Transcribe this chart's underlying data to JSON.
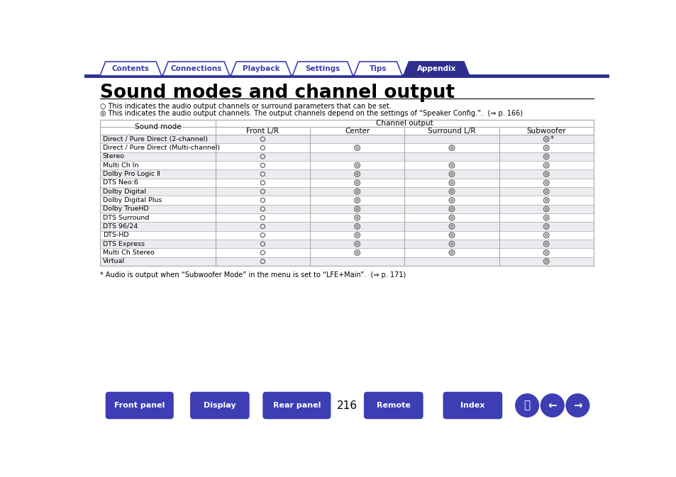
{
  "title": "Sound modes and channel output",
  "nav_tabs": [
    "Contents",
    "Connections",
    "Playback",
    "Settings",
    "Tips",
    "Appendix"
  ],
  "nav_active": "Appendix",
  "nav_color": "#3d3db4",
  "legend_line1": "○ This indicates the audio output channels or surround parameters that can be set.",
  "legend_line2": "◎ This indicates the audio output channels. The output channels depend on the settings of “Speaker Config.”.  (@ p. 166)",
  "table_header_main": "Channel output",
  "table_subheaders": [
    "Sound mode",
    "Front L/R",
    "Center",
    "Surround L/R",
    "Subwoofer"
  ],
  "sound_modes": [
    "Direct / Pure Direct (2-channel)",
    "Direct / Pure Direct (Multi-channel)",
    "Stereo",
    "Multi Ch In",
    "Dolby Pro Logic Ⅱ",
    "DTS Neo:6",
    "Dolby Digital",
    "Dolby Digital Plus",
    "Dolby TrueHD",
    "DTS Surround",
    "DTS 96/24",
    "DTS-HD",
    "DTS Express",
    "Multi Ch Stereo",
    "Virtual"
  ],
  "table_data": {
    "Front L/R": [
      1,
      1,
      1,
      1,
      1,
      1,
      1,
      1,
      1,
      1,
      1,
      1,
      1,
      1,
      1
    ],
    "Center": [
      0,
      2,
      0,
      2,
      2,
      2,
      2,
      2,
      2,
      2,
      2,
      2,
      2,
      2,
      0
    ],
    "Surround L/R": [
      0,
      2,
      0,
      2,
      2,
      2,
      2,
      2,
      2,
      2,
      2,
      2,
      2,
      2,
      0
    ],
    "Subwoofer": [
      3,
      2,
      2,
      2,
      2,
      2,
      2,
      2,
      2,
      2,
      2,
      2,
      2,
      2,
      2
    ]
  },
  "footnote": "* Audio is output when “Subwoofer Mode” in the menu is set to “LFE+Main”.  (@ p. 171)",
  "page_number": "216",
  "bottom_buttons": [
    "Front panel",
    "Display",
    "Rear panel",
    "Remote",
    "Index"
  ],
  "bg_color": "#ffffff",
  "row_alt_color": "#ebebf0",
  "row_normal_color": "#ffffff",
  "border_color": "#aaaaaa",
  "button_color": "#3d3db4",
  "tab_color": "#3d3db4",
  "tab_active_color": "#2e2e8f",
  "title_rule_color": "#000000"
}
